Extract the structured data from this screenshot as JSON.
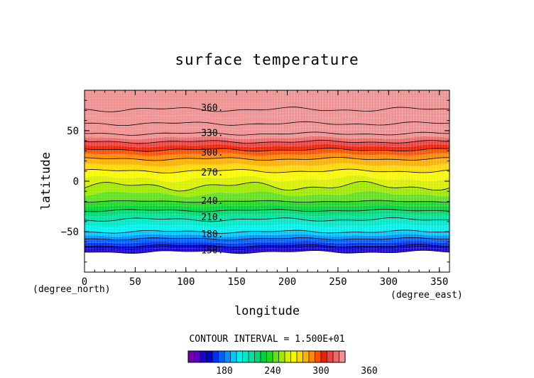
{
  "chart_data": {
    "type": "heatmap",
    "subtype": "filled-contour",
    "title": "surface temperature",
    "xlabel": "longitude",
    "ylabel": "latitude",
    "x_unit": "(degree_east)",
    "y_unit": "(degree_north)",
    "xlim": [
      0,
      360
    ],
    "ylim": [
      -90,
      90
    ],
    "x_ticks": [
      0,
      50,
      100,
      150,
      200,
      250,
      300,
      350
    ],
    "y_ticks": [
      -50,
      0,
      50
    ],
    "contour_interval_text": "CONTOUR INTERVAL = 1.500E+01",
    "contour_interval": 15,
    "fill_min_lat": -72,
    "contour_labels": [
      {
        "value": 360,
        "text": "360.",
        "lon": 126,
        "lat": 73
      },
      {
        "value": 330,
        "text": "330.",
        "lon": 126,
        "lat": 48
      },
      {
        "value": 300,
        "text": "300.",
        "lon": 126,
        "lat": 29
      },
      {
        "value": 270,
        "text": "270.",
        "lon": 126,
        "lat": 9
      },
      {
        "value": 240,
        "text": "240.",
        "lon": 126,
        "lat": -19
      },
      {
        "value": 210,
        "text": "210.",
        "lon": 126,
        "lat": -35
      },
      {
        "value": 180,
        "text": "180.",
        "lon": 126,
        "lat": -52
      },
      {
        "value": 150,
        "text": "150.",
        "lon": 126,
        "lat": -68
      }
    ],
    "contours": [
      {
        "value": 150,
        "lat": -70,
        "wave": 1.0
      },
      {
        "value": 165,
        "lat": -64,
        "wave": 0.8
      },
      {
        "value": 180,
        "lat": -57,
        "wave": 0.8
      },
      {
        "value": 195,
        "lat": -50,
        "wave": 1.0
      },
      {
        "value": 210,
        "lat": -38,
        "wave": 1.2
      },
      {
        "value": 225,
        "lat": -29,
        "wave": 0.8
      },
      {
        "value": 240,
        "lat": -20,
        "wave": 0.6
      },
      {
        "value": 255,
        "lat": -5,
        "wave": 3.0
      },
      {
        "value": 270,
        "lat": 10,
        "wave": 1.2
      },
      {
        "value": 285,
        "lat": 22,
        "wave": 1.0
      },
      {
        "value": 300,
        "lat": 31,
        "wave": 1.0
      },
      {
        "value": 315,
        "lat": 39,
        "wave": 1.0
      },
      {
        "value": 330,
        "lat": 47,
        "wave": 1.0
      },
      {
        "value": 345,
        "lat": 57,
        "wave": 1.2
      },
      {
        "value": 360,
        "lat": 71,
        "wave": 1.5
      }
    ],
    "colorbar": {
      "ticks": [
        180,
        240,
        300,
        360
      ],
      "min": 135,
      "step": 7.5,
      "colors": [
        "#7000a8",
        "#5c00c0",
        "#1c00d8",
        "#0000c8",
        "#0030f0",
        "#0060ff",
        "#0090ff",
        "#00c8ff",
        "#00f0f0",
        "#00e8c8",
        "#00e0a0",
        "#00d870",
        "#00d040",
        "#20d820",
        "#60e020",
        "#a0e800",
        "#d8f000",
        "#f8f800",
        "#ffd800",
        "#ffb000",
        "#ff8800",
        "#ff5000",
        "#f02000",
        "#f04040",
        "#f06868",
        "#f09090"
      ]
    }
  }
}
